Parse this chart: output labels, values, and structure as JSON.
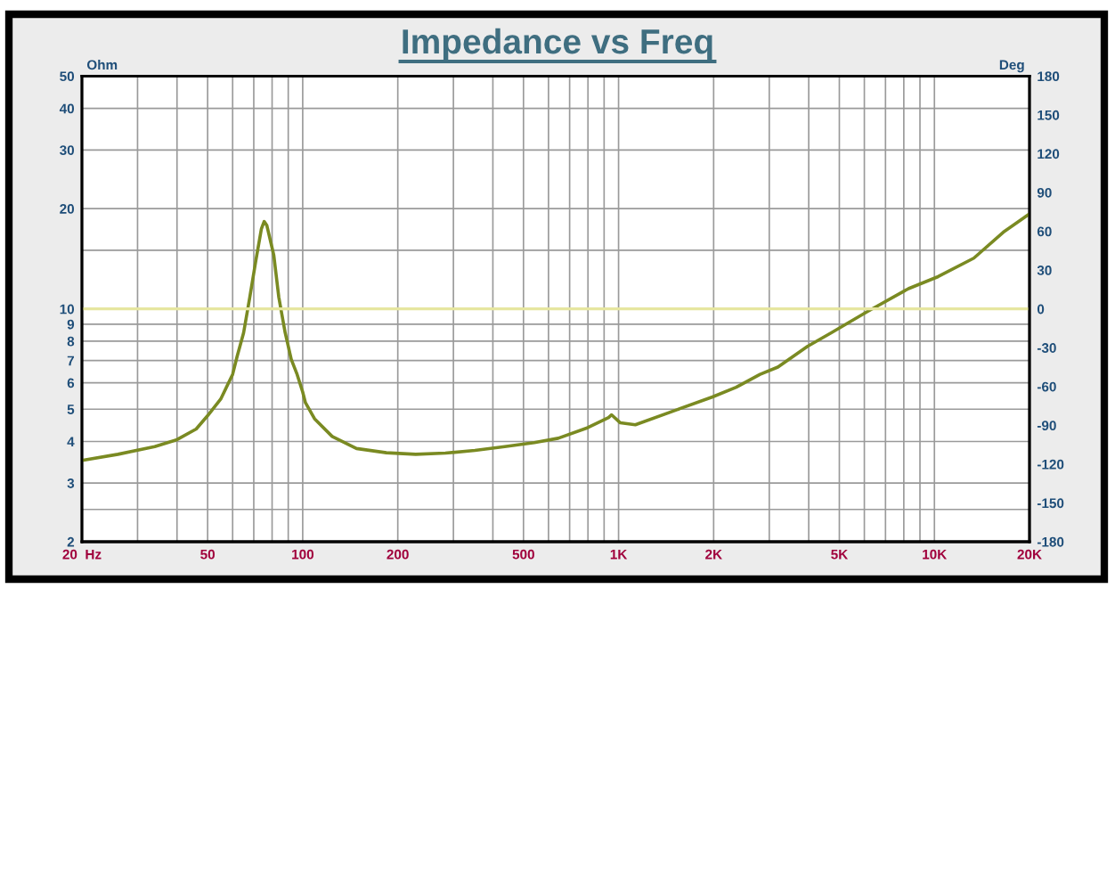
{
  "chart_data": {
    "type": "line",
    "title": "Impedance vs Freq",
    "ylabel": "Ohm",
    "y2label": "Deg",
    "x": [
      20,
      26,
      34,
      40,
      46,
      50,
      55,
      60,
      62,
      65,
      68,
      71,
      74,
      75.5,
      77,
      81,
      84,
      88,
      92,
      96,
      100,
      102,
      109,
      124,
      148,
      184,
      228,
      283,
      351,
      436,
      541,
      644,
      799,
      930,
      950,
      1013,
      1130,
      1530,
      1983,
      2357,
      2806,
      3194,
      3964,
      4715,
      6113,
      8273,
      10273,
      13323,
      16530,
      20000
    ],
    "series": [
      {
        "color": "#7a8a22",
        "values": [
          3.51,
          3.66,
          3.86,
          4.05,
          4.36,
          4.78,
          5.36,
          6.36,
          7.2,
          8.48,
          10.85,
          13.9,
          17.4,
          18.3,
          17.8,
          14.5,
          10.85,
          8.48,
          7.05,
          6.36,
          5.63,
          5.23,
          4.68,
          4.14,
          3.81,
          3.7,
          3.66,
          3.69,
          3.76,
          3.86,
          3.97,
          4.09,
          4.4,
          4.72,
          4.81,
          4.55,
          4.49,
          4.98,
          5.44,
          5.82,
          6.36,
          6.69,
          7.72,
          8.48,
          9.8,
          11.5,
          12.5,
          14.2,
          17.0,
          19.3
        ]
      }
    ],
    "xlim": [
      20,
      20000
    ],
    "ylim": [
      2,
      50
    ],
    "y2lim": [
      -180,
      180
    ],
    "log": "xy",
    "grid": true,
    "xticks": [
      {
        "value": 20,
        "label": "20  Hz"
      },
      {
        "value": 30,
        "label": null
      },
      {
        "value": 40,
        "label": null
      },
      50,
      {
        "value": 60,
        "label": null
      },
      {
        "value": 70,
        "label": null
      },
      {
        "value": 80,
        "label": null
      },
      {
        "value": 90,
        "label": null
      },
      100,
      200,
      {
        "value": 300,
        "label": null
      },
      {
        "value": 400,
        "label": null
      },
      500,
      {
        "value": 600,
        "label": null
      },
      {
        "value": 700,
        "label": null
      },
      {
        "value": 800,
        "label": null
      },
      {
        "value": 900,
        "label": null
      },
      {
        "value": 1000,
        "label": "1K"
      },
      {
        "value": 2000,
        "label": "2K"
      },
      {
        "value": 3000,
        "label": null
      },
      {
        "value": 4000,
        "label": null
      },
      {
        "value": 5000,
        "label": "5K"
      },
      {
        "value": 6000,
        "label": null
      },
      {
        "value": 7000,
        "label": null
      },
      {
        "value": 8000,
        "label": null
      },
      {
        "value": 9000,
        "label": null
      },
      {
        "value": 10000,
        "label": "10K"
      },
      {
        "value": 20000,
        "label": "20K"
      }
    ],
    "yticks": [
      2,
      {
        "value": 2.5,
        "label": null
      },
      3,
      4,
      5,
      6,
      7,
      8,
      9,
      10,
      {
        "value": 15,
        "label": null
      },
      20,
      30,
      40,
      50
    ],
    "y2ticks": [
      -180,
      -150,
      -120,
      -90,
      -60,
      -30,
      0,
      30,
      60,
      90,
      120,
      150,
      180
    ],
    "ref_lines": [
      {
        "axis": "y2",
        "value": 0,
        "color": "#e6e6a0"
      }
    ]
  }
}
